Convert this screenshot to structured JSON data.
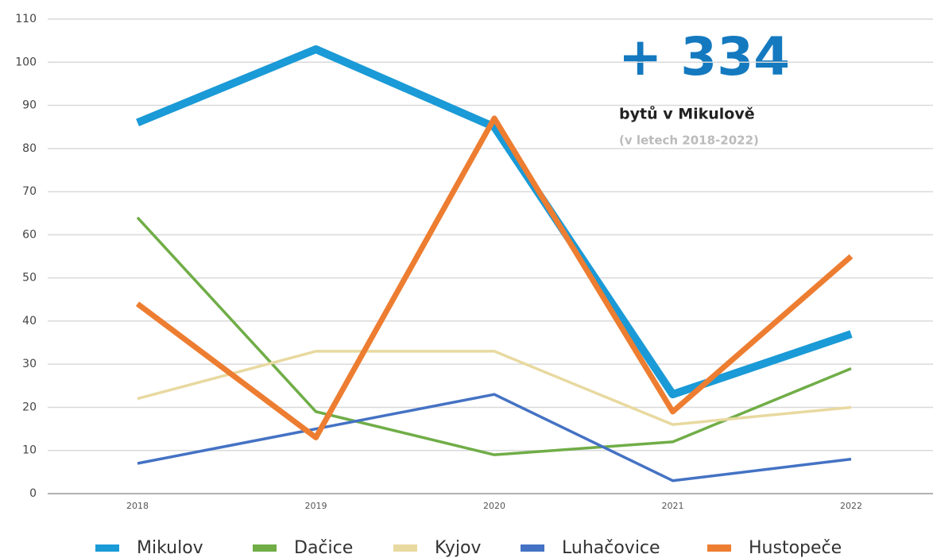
{
  "chart_data": {
    "type": "line",
    "categories": [
      "2018",
      "2019",
      "2020",
      "2021",
      "2022"
    ],
    "series": [
      {
        "name": "Mikulov",
        "color": "#1a9ad6",
        "values": [
          86,
          103,
          85,
          23,
          37
        ]
      },
      {
        "name": "Dačice",
        "color": "#70ad47",
        "values": [
          64,
          19,
          9,
          12,
          29
        ]
      },
      {
        "name": "Kyjov",
        "color": "#e8d9a0",
        "values": [
          22,
          33,
          33,
          16,
          20
        ]
      },
      {
        "name": "Luhačovice",
        "color": "#4472c4",
        "values": [
          7,
          15,
          23,
          3,
          8
        ]
      },
      {
        "name": "Hustopeče",
        "color": "#ed7d31",
        "values": [
          44,
          13,
          87,
          19,
          55
        ]
      }
    ],
    "ylim": [
      0,
      110
    ],
    "yticks": [
      0,
      10,
      20,
      30,
      40,
      50,
      60,
      70,
      80,
      90,
      100,
      110
    ],
    "grid": true,
    "legend": "bottom",
    "annotations": [
      "+ 334",
      "bytů v Mikulově",
      "(v letech 2018-2022)"
    ]
  }
}
